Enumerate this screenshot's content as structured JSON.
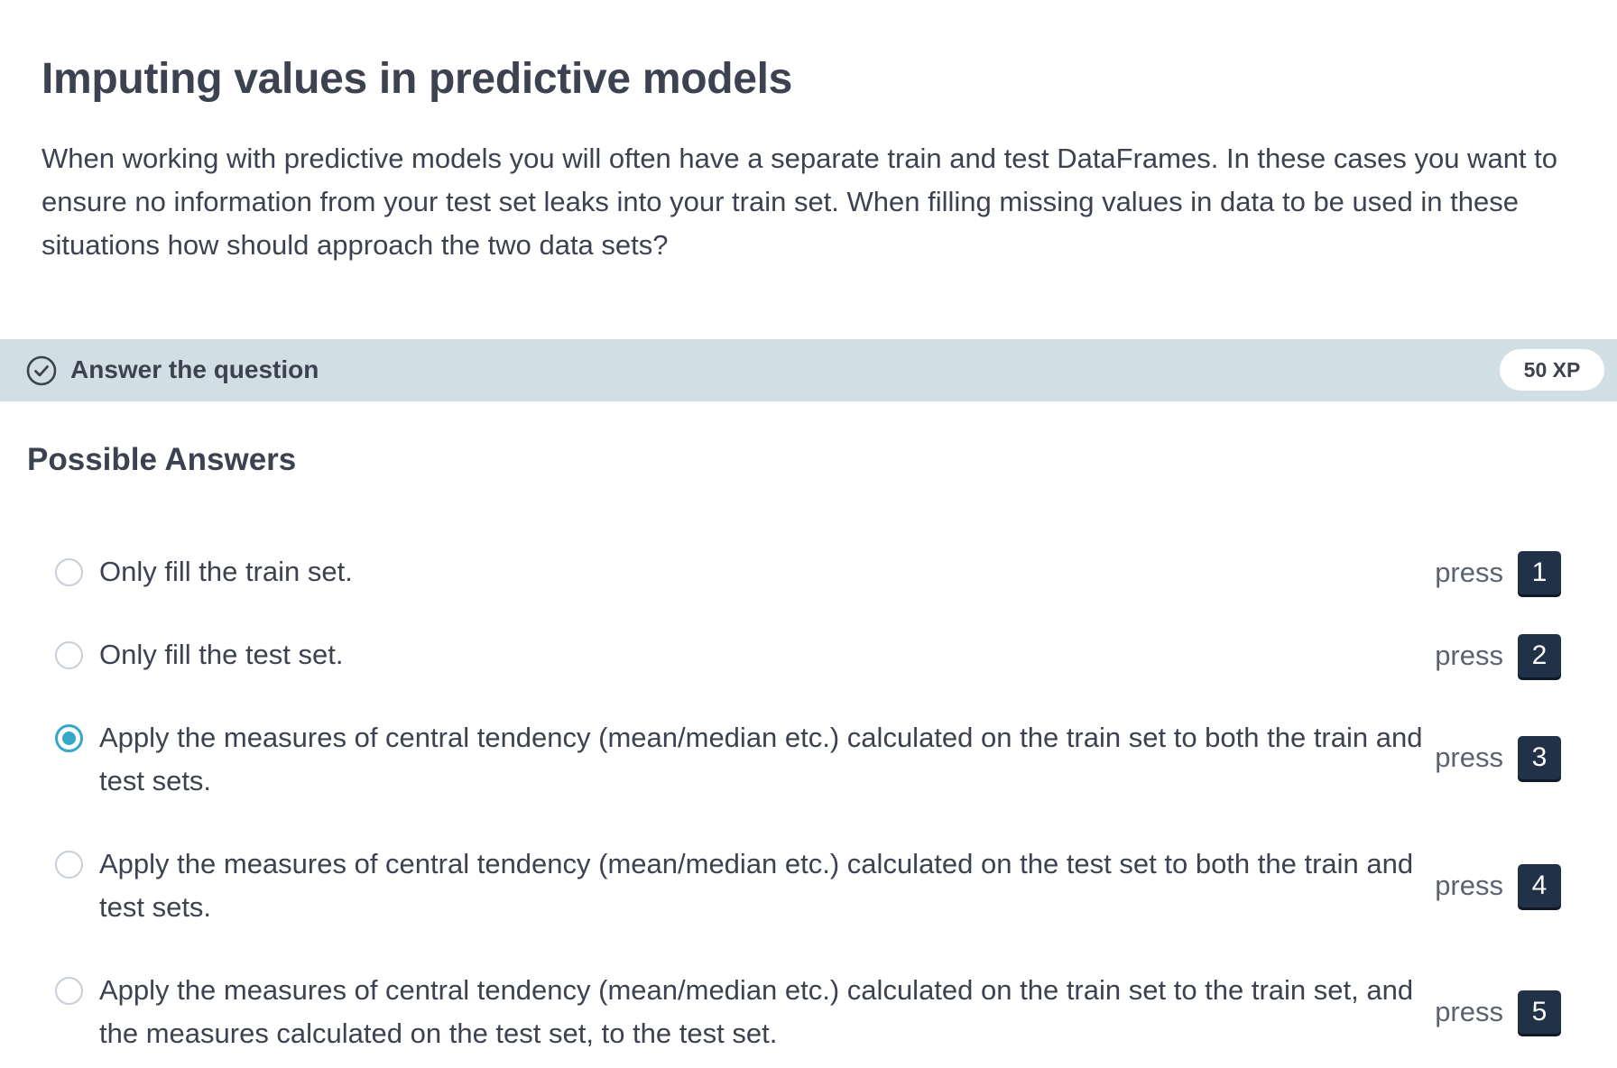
{
  "exercise": {
    "title": "Imputing values in predictive models",
    "description": "When working with predictive models you will often have a separate train and test DataFrames. In these cases you want to ensure no information from your test set leaks into your train set. When filling missing values in data to be used in these situations how should approach the two data sets?"
  },
  "answer_bar": {
    "icon": "check-circle-icon",
    "label": "Answer the question",
    "xp": "50 XP",
    "background_color": "#d1dee3"
  },
  "possible_answers": {
    "title": "Possible Answers",
    "press_label": "press",
    "selected_index": 2,
    "accent_color": "#33a8c8",
    "key_color": "#213147",
    "options": [
      {
        "text": "Only fill the train set.",
        "key": "1",
        "selected": false
      },
      {
        "text": "Only fill the test set.",
        "key": "2",
        "selected": false
      },
      {
        "text": "Apply the measures of central tendency (mean/median etc.) calculated on the train set to both the train and test sets.",
        "key": "3",
        "selected": true
      },
      {
        "text": "Apply the measures of central tendency (mean/median etc.) calculated on the test set to both the train and test sets.",
        "key": "4",
        "selected": false
      },
      {
        "text": "Apply the measures of central tendency (mean/median etc.) calculated on the train set to the train set, and the measures calculated on the test set, to the test set.",
        "key": "5",
        "selected": false
      }
    ]
  }
}
